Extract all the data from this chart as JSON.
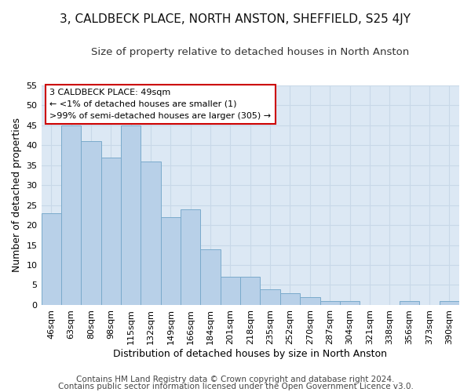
{
  "title": "3, CALDBECK PLACE, NORTH ANSTON, SHEFFIELD, S25 4JY",
  "subtitle": "Size of property relative to detached houses in North Anston",
  "xlabel": "Distribution of detached houses by size in North Anston",
  "ylabel": "Number of detached properties",
  "footer_line1": "Contains HM Land Registry data © Crown copyright and database right 2024.",
  "footer_line2": "Contains public sector information licensed under the Open Government Licence v3.0.",
  "categories": [
    "46sqm",
    "63sqm",
    "80sqm",
    "98sqm",
    "115sqm",
    "132sqm",
    "149sqm",
    "166sqm",
    "184sqm",
    "201sqm",
    "218sqm",
    "235sqm",
    "252sqm",
    "270sqm",
    "287sqm",
    "304sqm",
    "321sqm",
    "338sqm",
    "356sqm",
    "373sqm",
    "390sqm"
  ],
  "values": [
    23,
    45,
    41,
    37,
    45,
    36,
    22,
    24,
    14,
    7,
    7,
    4,
    3,
    2,
    1,
    1,
    0,
    0,
    1,
    0,
    1
  ],
  "bar_color": "#b8d0e8",
  "bar_edge_color": "#7aaacb",
  "annotation_box_text": "3 CALDBECK PLACE: 49sqm\n← <1% of detached houses are smaller (1)\n>99% of semi-detached houses are larger (305) →",
  "annotation_box_color": "white",
  "annotation_box_edge_color": "#cc0000",
  "grid_color": "#c8d8e8",
  "bg_color": "#ffffff",
  "plot_bg_color": "#dce8f4",
  "ylim": [
    0,
    55
  ],
  "yticks": [
    0,
    5,
    10,
    15,
    20,
    25,
    30,
    35,
    40,
    45,
    50,
    55
  ],
  "title_fontsize": 11,
  "subtitle_fontsize": 9.5,
  "axis_label_fontsize": 9,
  "tick_fontsize": 8,
  "footer_fontsize": 7.5
}
